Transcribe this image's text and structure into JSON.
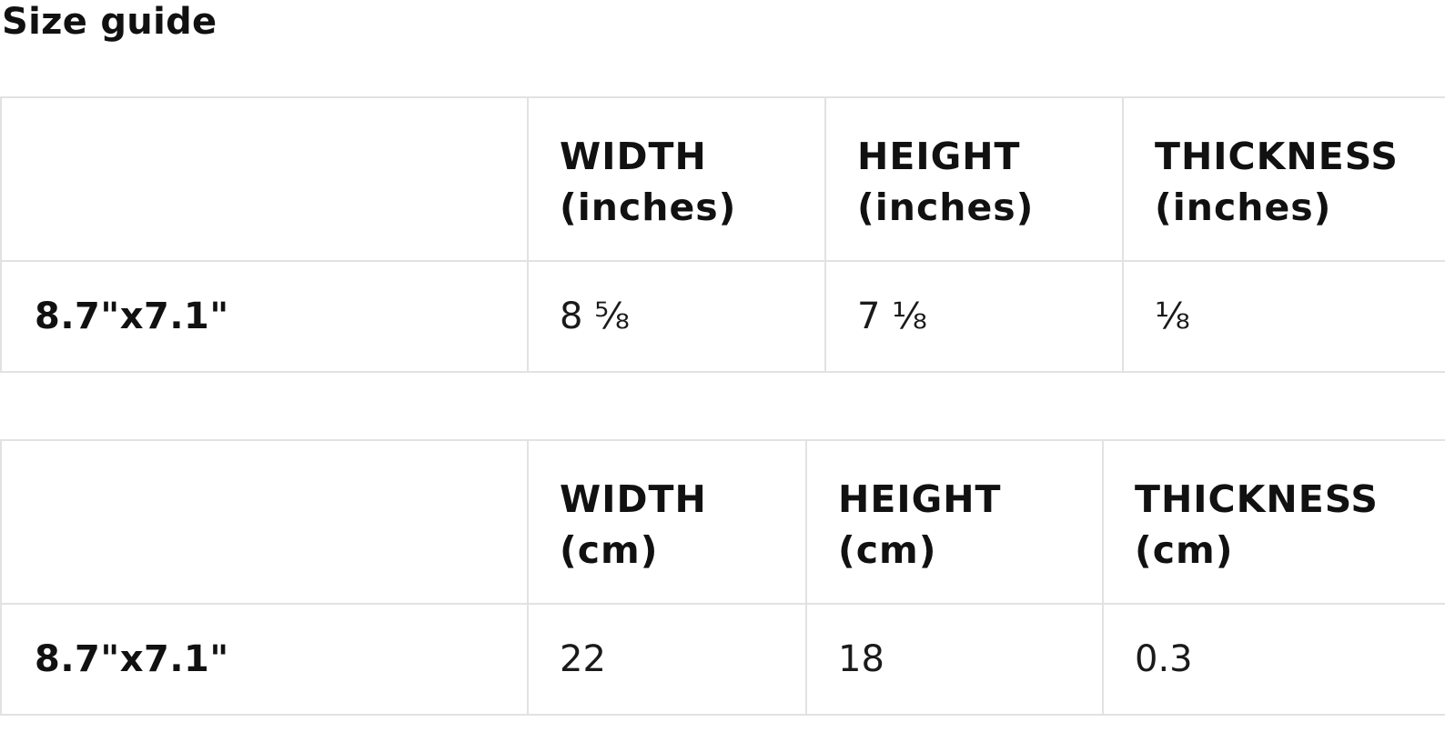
{
  "title": "Size guide",
  "tables": [
    {
      "headers": [
        {
          "name": "WIDTH",
          "unit": "(inches)"
        },
        {
          "name": "HEIGHT",
          "unit": "(inches)"
        },
        {
          "name": "THICKNESS",
          "unit": "(inches)"
        }
      ],
      "rows": [
        {
          "label": "8.7\"x7.1\"",
          "values": [
            "8 ⅝",
            "7 ⅛",
            "⅛"
          ]
        }
      ]
    },
    {
      "headers": [
        {
          "name": "WIDTH",
          "unit": "(cm)"
        },
        {
          "name": "HEIGHT",
          "unit": "(cm)"
        },
        {
          "name": "THICKNESS",
          "unit": "(cm)"
        }
      ],
      "rows": [
        {
          "label": "8.7\"x7.1\"",
          "values": [
            "22",
            "18",
            "0.3"
          ]
        }
      ]
    }
  ]
}
